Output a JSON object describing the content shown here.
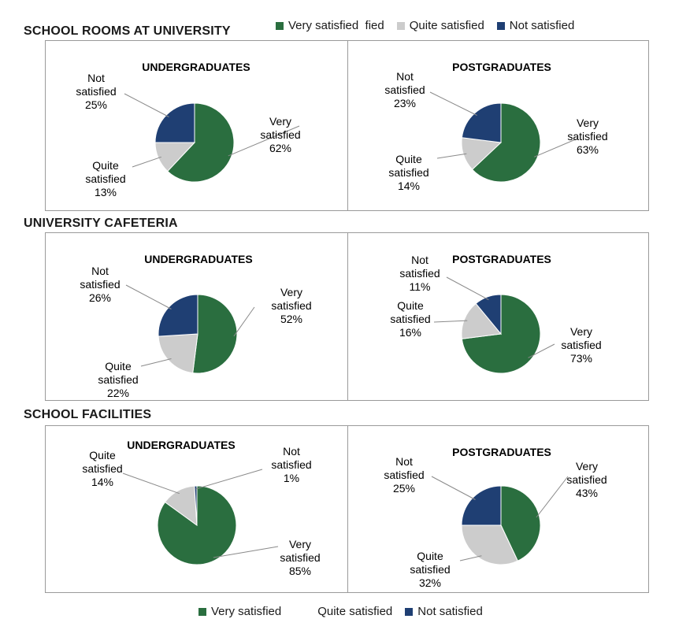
{
  "legend_top": [
    {
      "label": "Very satisfied  fied",
      "color": "#2a6e3f"
    },
    {
      "label": "Quite satisfied",
      "color": "#cccccc"
    },
    {
      "label": "Not satisfied",
      "color": "#1f3f73"
    }
  ],
  "legend_bottom": [
    {
      "label": "Very satisfied",
      "color": "#2a6e3f"
    },
    {
      "label": "Quite satisfied",
      "color": ""
    },
    {
      "label": "Not satisfied",
      "color": "#1f3f73"
    }
  ],
  "sections": [
    {
      "title": "SCHOOL ROOMS AT UNIVERSITY"
    },
    {
      "title": "UNIVERSITY CAFETERIA"
    },
    {
      "title": "SCHOOL FACILITIES"
    }
  ],
  "chart_data": [
    {
      "type": "pie",
      "section": "SCHOOL ROOMS AT UNIVERSITY",
      "title": "UNDERGRADUATES",
      "slices": [
        {
          "name": "Very satisfied",
          "lines": [
            "Very",
            "satisfied"
          ],
          "value": 62,
          "label": "62%",
          "color": "#2a6e3f"
        },
        {
          "name": "Quite satisfied",
          "lines": [
            "Quite",
            "satisfied"
          ],
          "value": 13,
          "label": "13%",
          "color": "#cccccc"
        },
        {
          "name": "Not satisfied",
          "lines": [
            "Not",
            "satisfied"
          ],
          "value": 25,
          "label": "25%",
          "color": "#1f3f73"
        }
      ]
    },
    {
      "type": "pie",
      "section": "SCHOOL ROOMS AT UNIVERSITY",
      "title": "POSTGRADUATES",
      "slices": [
        {
          "name": "Very satisfied",
          "lines": [
            "Very",
            "satisfied"
          ],
          "value": 63,
          "label": "63%",
          "color": "#2a6e3f"
        },
        {
          "name": "Quite satisfied",
          "lines": [
            "Quite",
            "satisfied"
          ],
          "value": 14,
          "label": "14%",
          "color": "#cccccc"
        },
        {
          "name": "Not satisfied",
          "lines": [
            "Not",
            "satisfied"
          ],
          "value": 23,
          "label": "23%",
          "color": "#1f3f73"
        }
      ]
    },
    {
      "type": "pie",
      "section": "UNIVERSITY CAFETERIA",
      "title": "UNDERGRADUATES",
      "slices": [
        {
          "name": "Very satisfied",
          "lines": [
            "Very",
            "satisfied"
          ],
          "value": 52,
          "label": "52%",
          "color": "#2a6e3f"
        },
        {
          "name": "Quite satisfied",
          "lines": [
            "Quite",
            "satisfied"
          ],
          "value": 22,
          "label": "22%",
          "color": "#cccccc"
        },
        {
          "name": "Not satisfied",
          "lines": [
            "Not",
            "satisfied"
          ],
          "value": 26,
          "label": "26%",
          "color": "#1f3f73"
        }
      ]
    },
    {
      "type": "pie",
      "section": "UNIVERSITY CAFETERIA",
      "title": "POSTGRADUATES",
      "slices": [
        {
          "name": "Very satisfied",
          "lines": [
            "Very",
            "satisfied"
          ],
          "value": 73,
          "label": "73%",
          "color": "#2a6e3f"
        },
        {
          "name": "Quite satisfied",
          "lines": [
            "Quite",
            "satisfied"
          ],
          "value": 16,
          "label": "16%",
          "color": "#cccccc"
        },
        {
          "name": "Not satisfied",
          "lines": [
            "Not",
            "satisfied"
          ],
          "value": 11,
          "label": "11%",
          "color": "#1f3f73"
        }
      ]
    },
    {
      "type": "pie",
      "section": "SCHOOL FACILITIES",
      "title": "UNDERGRADUATES",
      "slices": [
        {
          "name": "Very satisfied",
          "lines": [
            "Very",
            "satisfied"
          ],
          "value": 85,
          "label": "85%",
          "color": "#2a6e3f"
        },
        {
          "name": "Quite satisfied",
          "lines": [
            "Quite",
            "satisfied"
          ],
          "value": 14,
          "label": "14%",
          "color": "#cccccc"
        },
        {
          "name": "Not satisfied",
          "lines": [
            "Not",
            "satisfied"
          ],
          "value": 1,
          "label": "1%",
          "color": "#1f3f73"
        }
      ]
    },
    {
      "type": "pie",
      "section": "SCHOOL FACILITIES",
      "title": "POSTGRADUATES",
      "slices": [
        {
          "name": "Very satisfied",
          "lines": [
            "Very",
            "satisfied"
          ],
          "value": 43,
          "label": "43%",
          "color": "#2a6e3f"
        },
        {
          "name": "Quite satisfied",
          "lines": [
            "Quite",
            "satisfied"
          ],
          "value": 32,
          "label": "32%",
          "color": "#cccccc"
        },
        {
          "name": "Not satisfied",
          "lines": [
            "Not",
            "satisfied"
          ],
          "value": 25,
          "label": "25%",
          "color": "#1f3f73"
        }
      ]
    }
  ]
}
